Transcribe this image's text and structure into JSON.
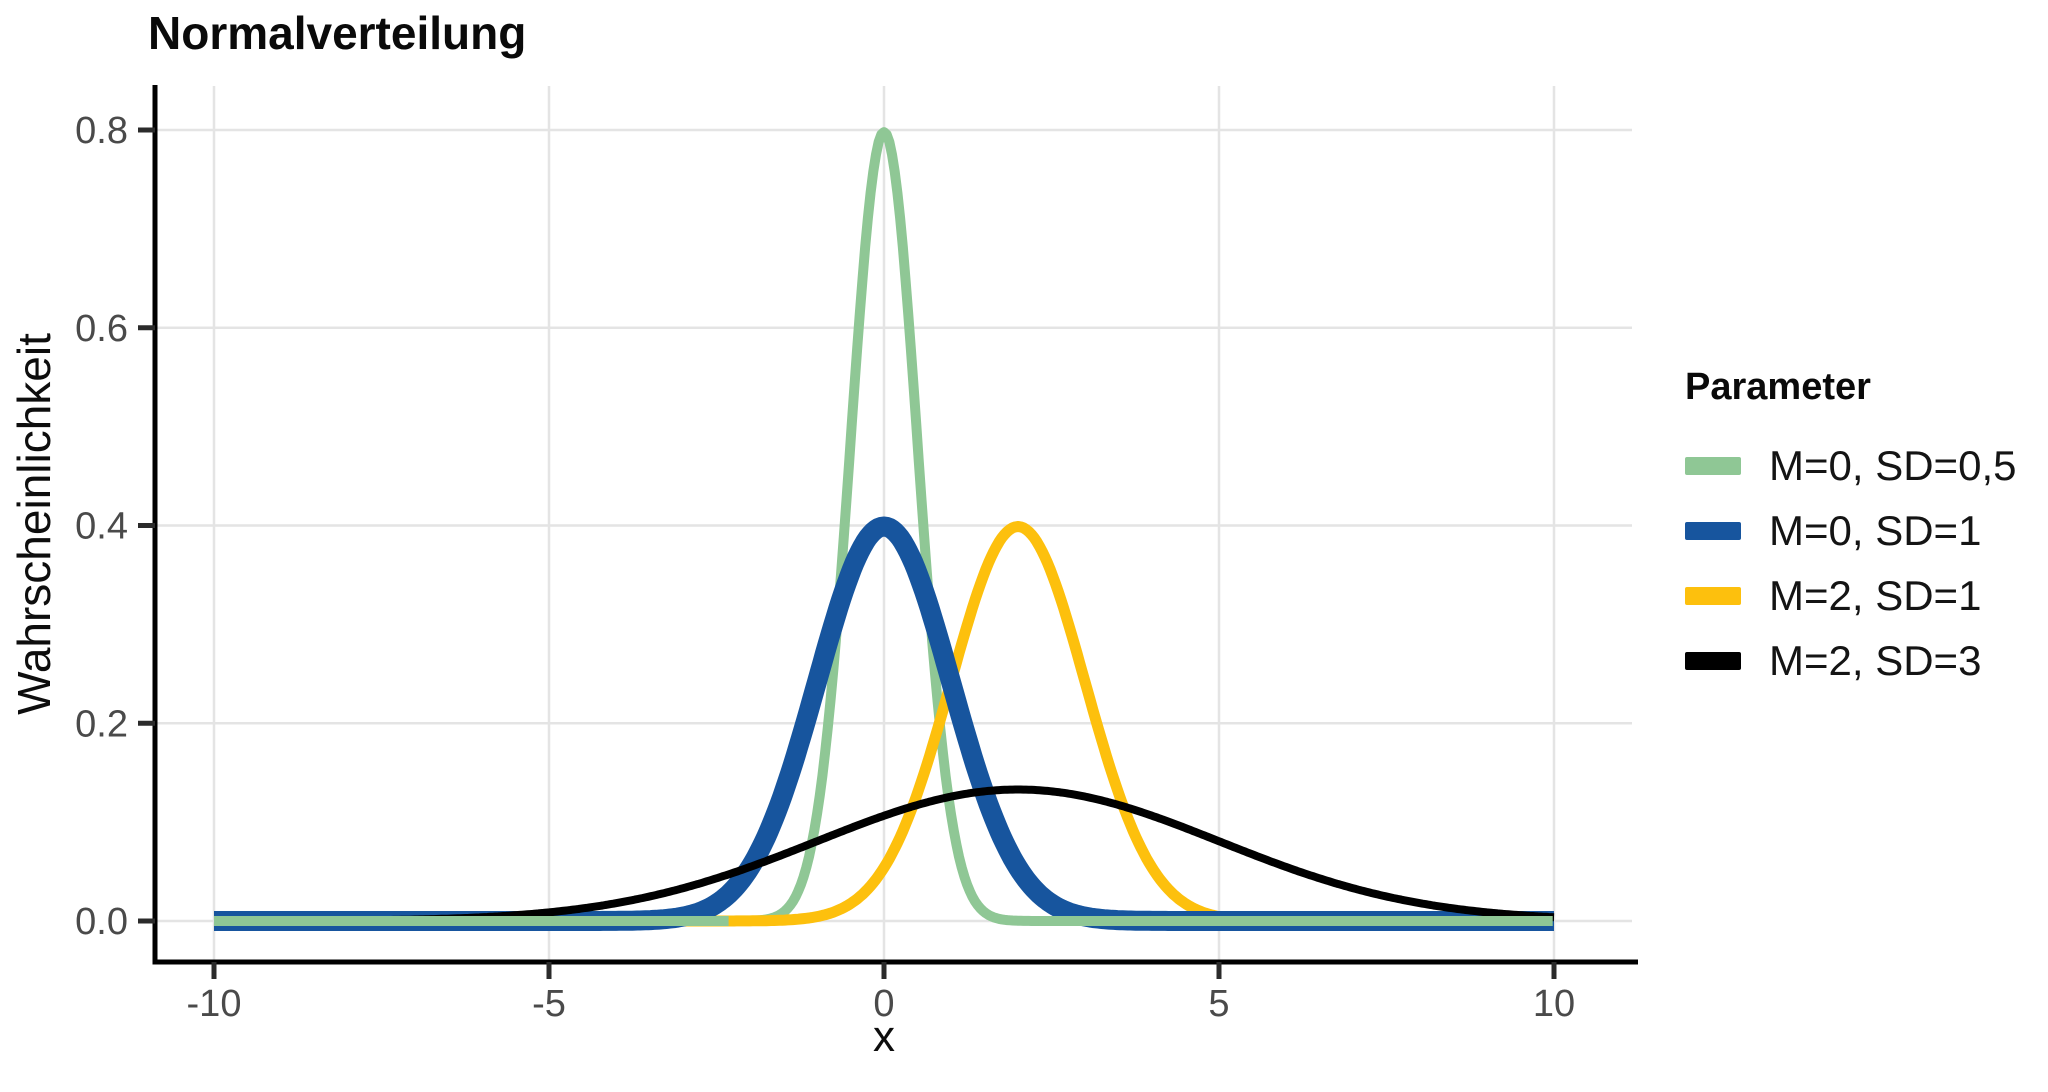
{
  "title": "Normalverteilung",
  "axes": {
    "x": {
      "label": "x",
      "tick_labels": [
        "-10",
        "-5",
        "0",
        "5",
        "10"
      ],
      "tick_values": [
        -10,
        -5,
        0,
        5,
        10
      ],
      "range": [
        -10,
        10
      ]
    },
    "y": {
      "label": "Wahrscheinlichkeit",
      "tick_labels": [
        "0.0",
        "0.2",
        "0.4",
        "0.6",
        "0.8"
      ],
      "tick_values": [
        0,
        0.2,
        0.4,
        0.6,
        0.8
      ],
      "range": [
        0,
        0.84
      ]
    }
  },
  "legend": {
    "title": "Parameter",
    "items": [
      {
        "label": "M=0, SD=0,5",
        "color": "#8FC795"
      },
      {
        "label": "M=0, SD=1",
        "color": "#17559E"
      },
      {
        "label": "M=2, SD=1",
        "color": "#FDC00D"
      },
      {
        "label": "M=2, SD=3",
        "color": "#000000"
      }
    ]
  },
  "chart_data": {
    "type": "line",
    "title": "Normalverteilung",
    "xlabel": "x",
    "ylabel": "Wahrscheinlichkeit",
    "x_range": [
      -10,
      10
    ],
    "y_ticks": [
      0,
      0.2,
      0.4,
      0.6,
      0.8
    ],
    "x_ticks": [
      -10,
      -5,
      0,
      5,
      10
    ],
    "grid": "major-only",
    "legend_position": "right",
    "series": [
      {
        "name": "M=0, SD=0,5",
        "distribution": "normal",
        "mean": 0,
        "sd": 0.5,
        "peak_y": 0.798,
        "peak_x": 0,
        "color": "#8FC795",
        "line_width": 10,
        "z": 1,
        "tail_overlay": true,
        "tail_overlay_z": 5,
        "tail_overlay_from_abs_x": 2.3
      },
      {
        "name": "M=2, SD=1",
        "distribution": "normal",
        "mean": 2,
        "sd": 1,
        "peak_y": 0.399,
        "peak_x": 2,
        "color": "#FDC00D",
        "line_width": 11,
        "z": 2
      },
      {
        "name": "M=0, SD=1",
        "distribution": "normal",
        "mean": 0,
        "sd": 1,
        "peak_y": 0.399,
        "peak_x": 0,
        "color": "#17559E",
        "line_width": 20,
        "z": 3
      },
      {
        "name": "M=2, SD=3",
        "distribution": "normal",
        "mean": 2,
        "sd": 3,
        "peak_y": 0.133,
        "peak_x": 2,
        "color": "#000000",
        "line_width": 8,
        "z": 4
      }
    ],
    "style": {
      "grid_color": "#E4E4E4",
      "grid_width": 2.5,
      "axis_color": "#000000",
      "axis_width": 5,
      "tick_color": "#2b2b2b",
      "tick_label_color": "#4a4a4a",
      "tick_font_size": 38
    }
  }
}
